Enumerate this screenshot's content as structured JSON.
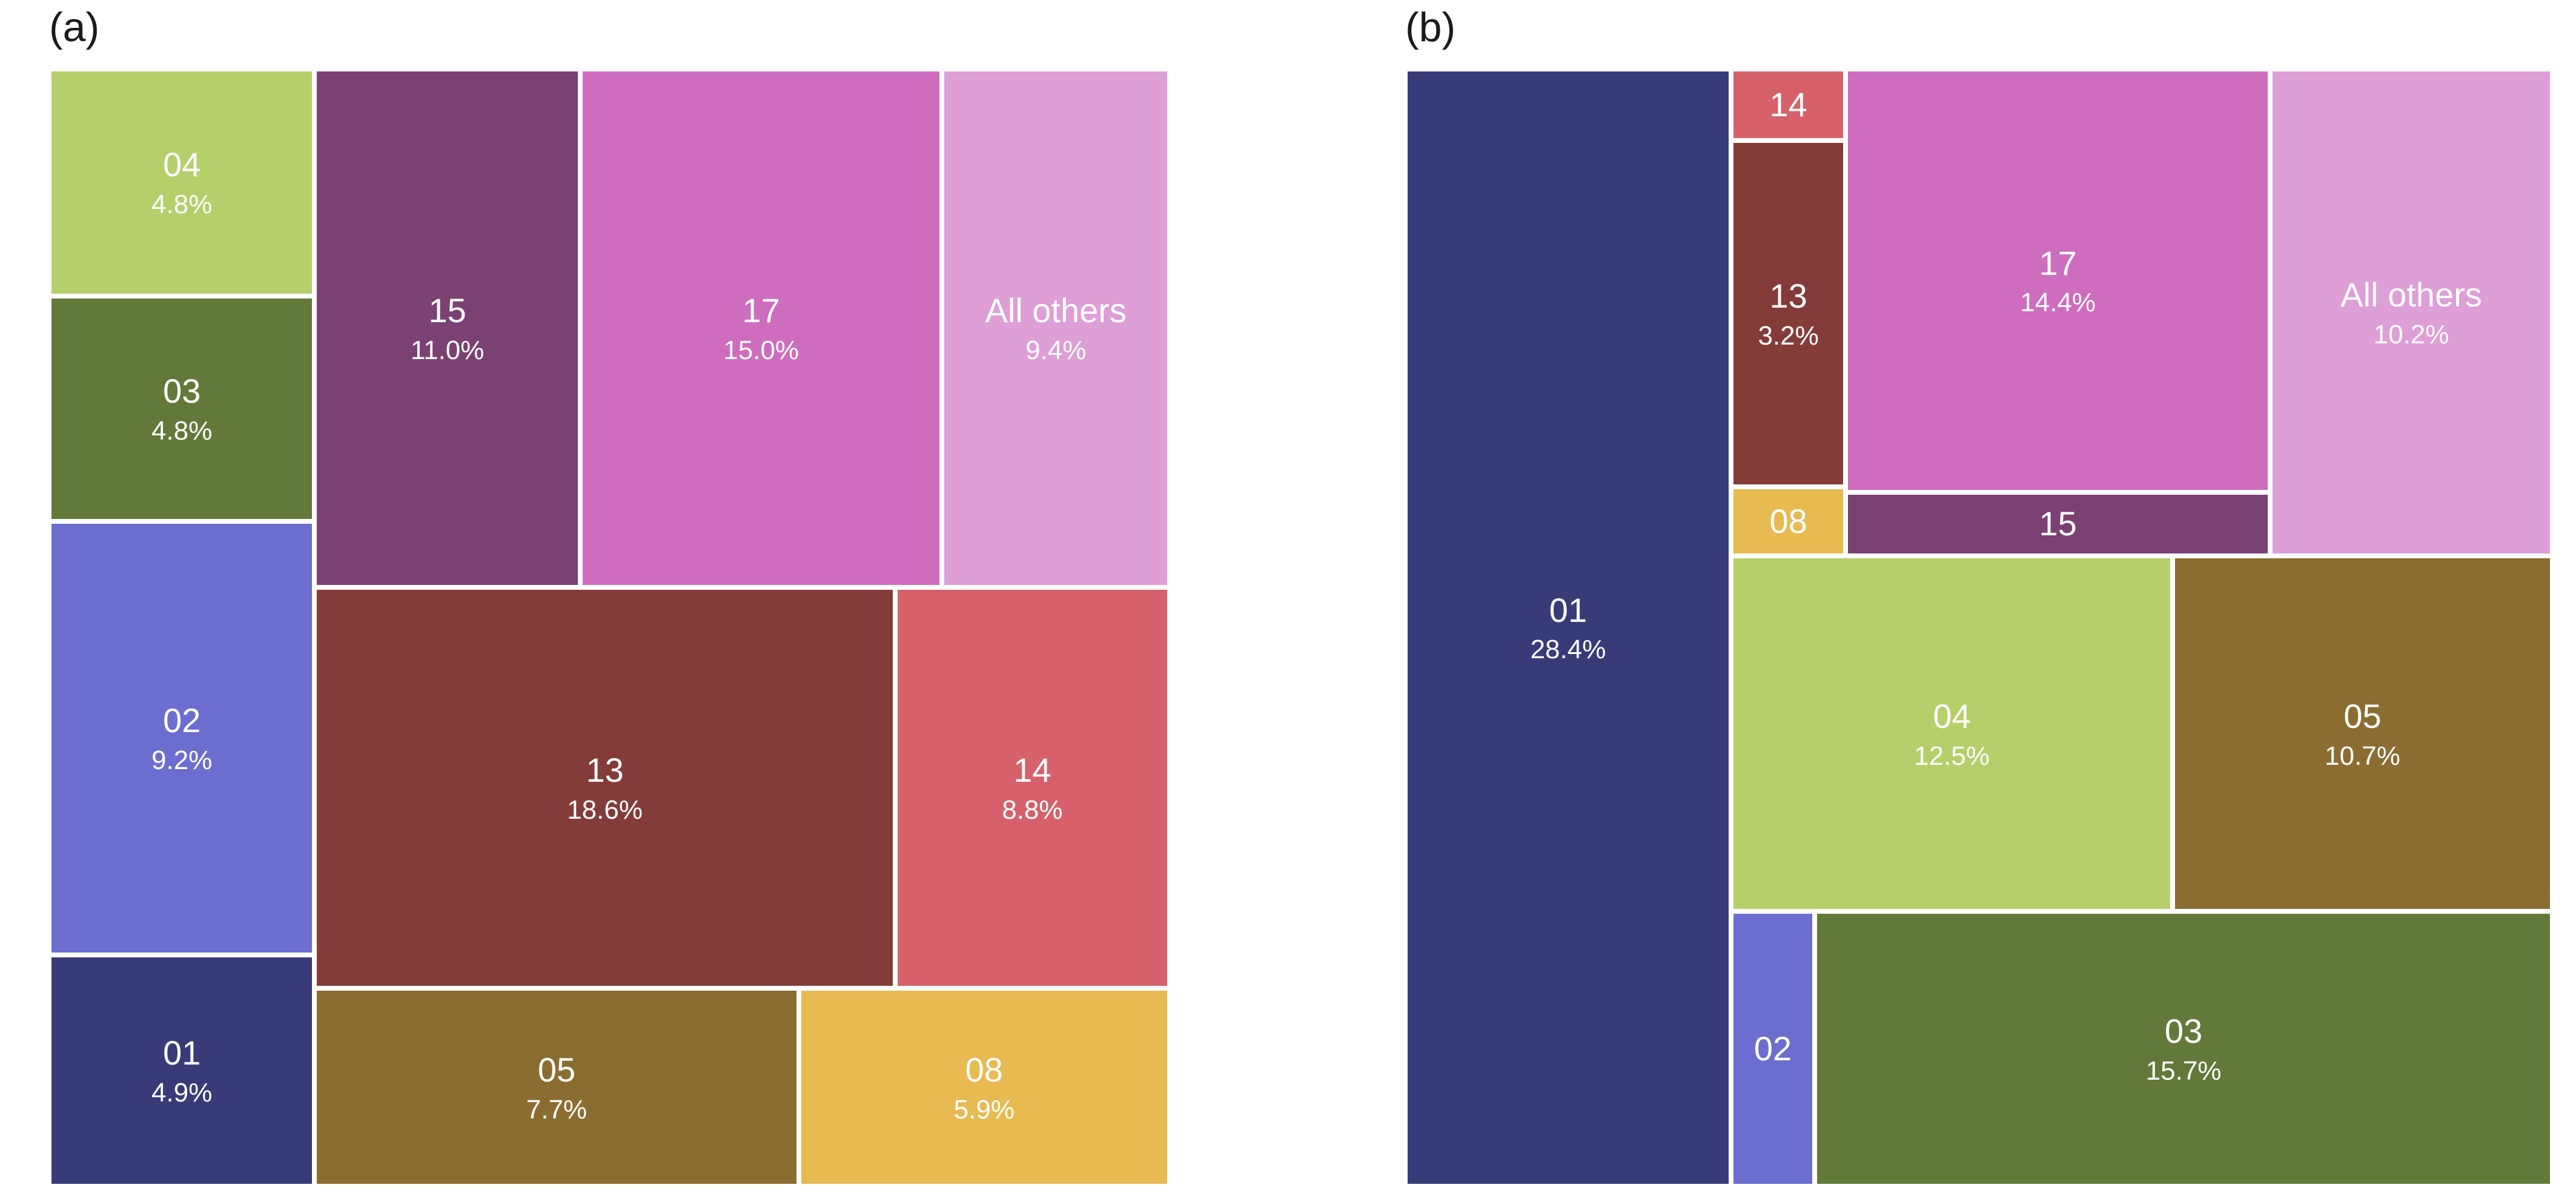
{
  "figure": {
    "background_color": "#ffffff",
    "tile_text_color": "#ffffff",
    "panel_label_color": "#1a1a1a"
  },
  "chart_data": [
    {
      "type": "treemap",
      "title": "(a)",
      "legend": "none",
      "tiles": [
        {
          "label": "04",
          "pct_label": "4.8%",
          "value": 4.8,
          "color": "#b5cf6b",
          "rect": {
            "x": 0,
            "y": 0,
            "w": 23.7,
            "h": 20.3
          }
        },
        {
          "label": "03",
          "pct_label": "4.8%",
          "value": 4.8,
          "color": "#637939",
          "rect": {
            "x": 0,
            "y": 20.3,
            "w": 23.7,
            "h": 20.2
          }
        },
        {
          "label": "02",
          "pct_label": "9.2%",
          "value": 9.2,
          "color": "#6b6ecf",
          "rect": {
            "x": 0,
            "y": 40.5,
            "w": 23.7,
            "h": 38.8
          }
        },
        {
          "label": "01",
          "pct_label": "4.9%",
          "value": 4.9,
          "color": "#393b79",
          "rect": {
            "x": 0,
            "y": 79.3,
            "w": 23.7,
            "h": 20.7
          }
        },
        {
          "label": "15",
          "pct_label": "11.0%",
          "value": 11.0,
          "color": "#7b4173",
          "rect": {
            "x": 23.7,
            "y": 0,
            "w": 23.7,
            "h": 46.4
          }
        },
        {
          "label": "17",
          "pct_label": "15.0%",
          "value": 15.0,
          "color": "#ce6dbd",
          "rect": {
            "x": 47.4,
            "y": 0,
            "w": 32.3,
            "h": 46.4
          }
        },
        {
          "label": "All others",
          "pct_label": "9.4%",
          "value": 9.4,
          "color": "#de9ed6",
          "rect": {
            "x": 79.7,
            "y": 0,
            "w": 20.3,
            "h": 46.4
          }
        },
        {
          "label": "13",
          "pct_label": "18.6%",
          "value": 18.6,
          "color": "#843c39",
          "rect": {
            "x": 23.7,
            "y": 46.4,
            "w": 51.8,
            "h": 35.9
          }
        },
        {
          "label": "14",
          "pct_label": "8.8%",
          "value": 8.8,
          "color": "#d6616b",
          "rect": {
            "x": 75.5,
            "y": 46.4,
            "w": 24.5,
            "h": 35.9
          }
        },
        {
          "label": "05",
          "pct_label": "7.7%",
          "value": 7.7,
          "color": "#8c6d31",
          "rect": {
            "x": 23.7,
            "y": 82.3,
            "w": 43.2,
            "h": 17.7
          }
        },
        {
          "label": "08",
          "pct_label": "5.9%",
          "value": 5.9,
          "color": "#e7ba52",
          "rect": {
            "x": 66.9,
            "y": 82.3,
            "w": 33.1,
            "h": 17.7
          }
        }
      ]
    },
    {
      "type": "treemap",
      "title": "(b)",
      "legend": "none",
      "tiles": [
        {
          "label": "01",
          "pct_label": "28.4%",
          "value": 28.4,
          "color": "#393b79",
          "rect": {
            "x": 0,
            "y": 0,
            "w": 28.4,
            "h": 100
          }
        },
        {
          "label": "14",
          "pct_label": "",
          "color": "#d6616b",
          "rect": {
            "x": 28.4,
            "y": 0,
            "w": 10.0,
            "h": 6.4
          }
        },
        {
          "label": "13",
          "pct_label": "3.2%",
          "value": 3.2,
          "color": "#843c39",
          "rect": {
            "x": 28.4,
            "y": 6.4,
            "w": 10.0,
            "h": 31.0
          }
        },
        {
          "label": "08",
          "pct_label": "",
          "color": "#e7ba52",
          "rect": {
            "x": 28.4,
            "y": 37.4,
            "w": 10.0,
            "h": 6.2
          }
        },
        {
          "label": "17",
          "pct_label": "14.4%",
          "value": 14.4,
          "color": "#ce6dbd",
          "rect": {
            "x": 38.4,
            "y": 0,
            "w": 37.0,
            "h": 37.9
          }
        },
        {
          "label": "15",
          "pct_label": "",
          "color": "#7b4173",
          "rect": {
            "x": 38.4,
            "y": 37.9,
            "w": 37.0,
            "h": 5.7
          }
        },
        {
          "label": "All others",
          "pct_label": "10.2%",
          "value": 10.2,
          "color": "#de9ed6",
          "rect": {
            "x": 75.4,
            "y": 0,
            "w": 24.6,
            "h": 43.6
          }
        },
        {
          "label": "04",
          "pct_label": "12.5%",
          "value": 12.5,
          "color": "#b5cf6b",
          "rect": {
            "x": 28.4,
            "y": 43.6,
            "w": 38.5,
            "h": 31.8
          }
        },
        {
          "label": "05",
          "pct_label": "10.7%",
          "value": 10.7,
          "color": "#8c6d31",
          "rect": {
            "x": 66.9,
            "y": 43.6,
            "w": 33.1,
            "h": 31.8
          }
        },
        {
          "label": "02",
          "pct_label": "",
          "color": "#6b6ecf",
          "rect": {
            "x": 28.4,
            "y": 75.4,
            "w": 7.3,
            "h": 24.6
          }
        },
        {
          "label": "03",
          "pct_label": "15.7%",
          "value": 15.7,
          "color": "#637939",
          "rect": {
            "x": 35.7,
            "y": 75.4,
            "w": 64.3,
            "h": 24.6
          }
        }
      ]
    }
  ]
}
